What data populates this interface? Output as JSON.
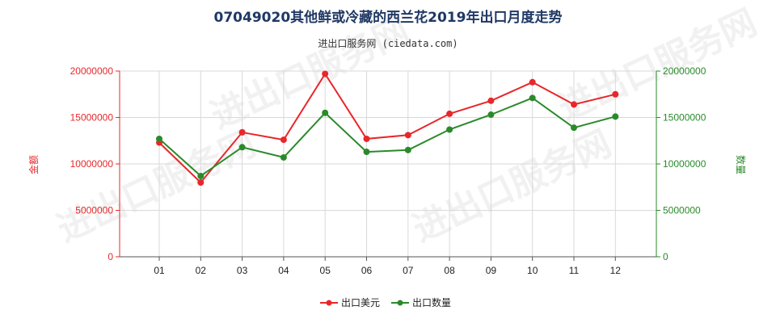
{
  "chart_data": {
    "type": "line",
    "title": "07049020其他鲜或冷藏的西兰花2019年出口月度走势",
    "subtitle": "进出口服务网 (ciedata.com)",
    "categories": [
      "01",
      "02",
      "03",
      "04",
      "05",
      "06",
      "07",
      "08",
      "09",
      "10",
      "11",
      "12"
    ],
    "y_left": {
      "label": "金额",
      "ticks": [
        "0",
        "5000000",
        "10000000",
        "15000000",
        "20000000"
      ],
      "min": 0,
      "max": 20000000,
      "color": "#e8272a"
    },
    "y_right": {
      "label": "数量",
      "ticks": [
        "0",
        "5000000",
        "10000000",
        "15000000",
        "20000000"
      ],
      "min": 0,
      "max": 20000000,
      "color": "#2a8a2a"
    },
    "grid": true,
    "legend_position": "bottom",
    "series": [
      {
        "name": "出口美元",
        "color": "#e8272a",
        "axis": "left",
        "values": [
          12300000,
          8000000,
          13400000,
          12600000,
          19700000,
          12700000,
          13100000,
          15400000,
          16800000,
          18800000,
          16400000,
          17500000
        ]
      },
      {
        "name": "出口数量",
        "color": "#2a8a2a",
        "axis": "right",
        "values": [
          12700000,
          8700000,
          11800000,
          10700000,
          15500000,
          11300000,
          11500000,
          13700000,
          15300000,
          17100000,
          13900000,
          15100000
        ]
      }
    ]
  },
  "watermark": "进出口服务网"
}
